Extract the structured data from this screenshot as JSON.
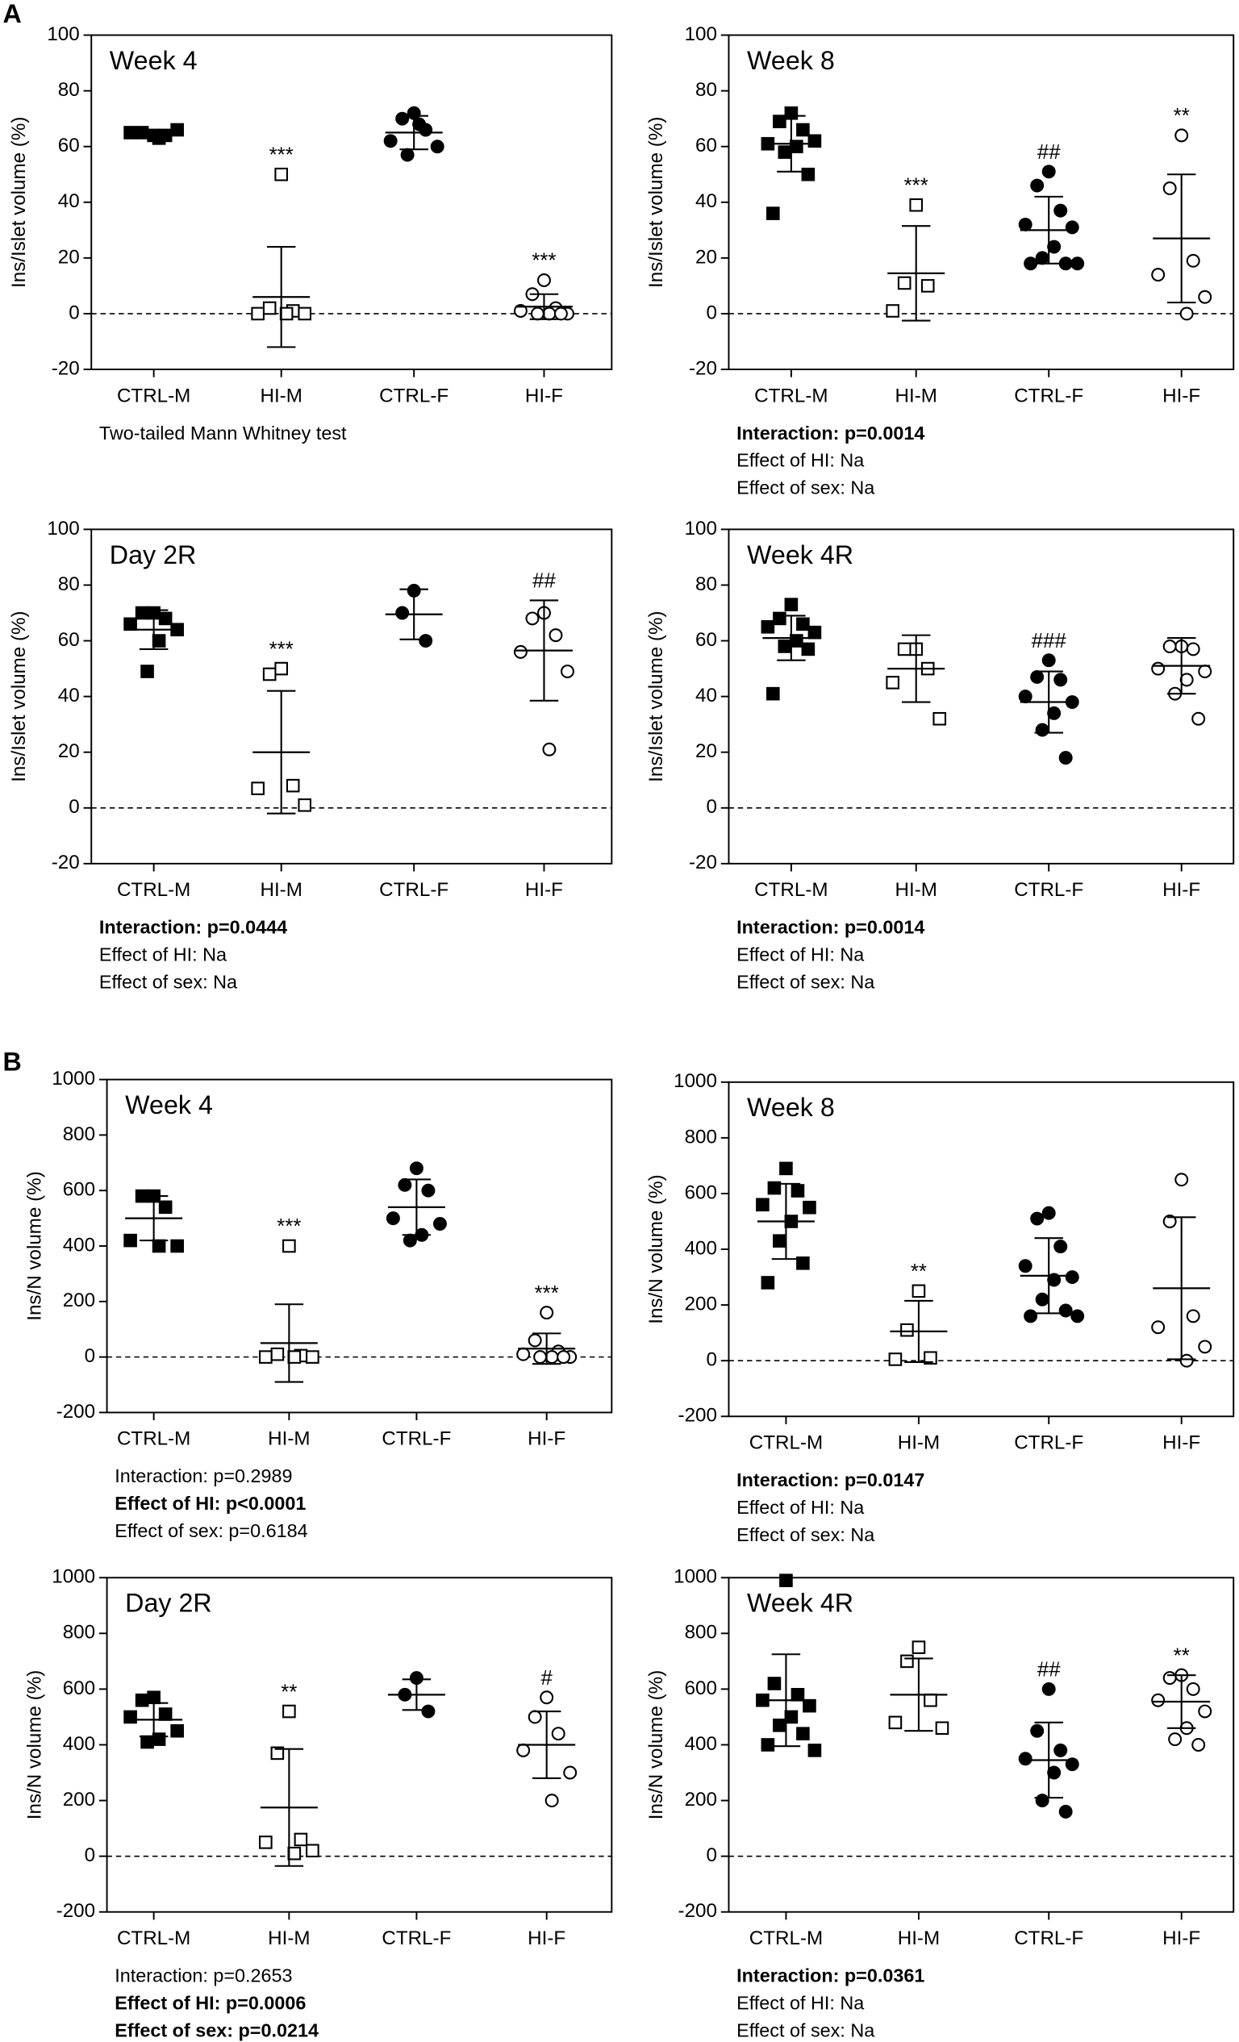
{
  "panel_labels": [
    "A",
    "B"
  ],
  "chart_data": [
    {
      "type": "dot",
      "title": "Week 4",
      "ylabel": "Ins/Islet volume (%)",
      "ylim": [
        -20,
        100
      ],
      "yticks": [
        -20,
        0,
        20,
        40,
        60,
        80,
        100
      ],
      "reference_line": 0,
      "series": [
        {
          "name": "CTRL-M",
          "marker": "square",
          "filled": true,
          "color": "#000",
          "values": [
            64,
            65,
            64,
            65,
            66,
            63
          ],
          "mean": 64.5,
          "sd": 1.2
        },
        {
          "name": "HI-M",
          "marker": "square",
          "filled": false,
          "color": "#000",
          "values": [
            50,
            2,
            1,
            0,
            0,
            0
          ],
          "mean": 6,
          "sd": 18,
          "annotation": "***"
        },
        {
          "name": "CTRL-F",
          "marker": "circle",
          "filled": true,
          "color": "#000",
          "values": [
            72,
            70,
            66,
            62,
            60,
            68,
            57
          ],
          "mean": 65,
          "sd": 6
        },
        {
          "name": "HI-F",
          "marker": "circle",
          "filled": false,
          "color": "#000",
          "values": [
            12,
            7,
            2,
            1,
            0,
            0,
            0,
            0
          ],
          "mean": 2.5,
          "sd": 4.5,
          "annotation": "***"
        }
      ],
      "notes": [
        {
          "text": "Two-tailed Mann Whitney test",
          "bold": false
        }
      ]
    },
    {
      "type": "dot",
      "title": "Week 8",
      "ylabel": "Ins/Islet volume (%)",
      "ylim": [
        -20,
        100
      ],
      "yticks": [
        -20,
        0,
        20,
        40,
        60,
        80,
        100
      ],
      "reference_line": 0,
      "series": [
        {
          "name": "CTRL-M",
          "marker": "square",
          "filled": true,
          "color": "#000",
          "values": [
            72,
            69,
            66,
            61,
            62,
            60,
            58,
            50,
            36
          ],
          "mean": 61,
          "sd": 10
        },
        {
          "name": "HI-M",
          "marker": "square",
          "filled": false,
          "color": "#000",
          "values": [
            39,
            11,
            10,
            1
          ],
          "mean": 14.5,
          "sd": 17,
          "annotation": "***"
        },
        {
          "name": "CTRL-F",
          "marker": "circle",
          "filled": true,
          "color": "#000",
          "values": [
            51,
            46,
            37,
            32,
            31,
            24,
            20,
            18,
            18,
            18
          ],
          "mean": 30,
          "sd": 12,
          "annotation": "##"
        },
        {
          "name": "HI-F",
          "marker": "circle",
          "filled": false,
          "color": "#000",
          "values": [
            64,
            45,
            19,
            14,
            6,
            0
          ],
          "mean": 27,
          "sd": 23,
          "annotation": "**"
        }
      ],
      "notes": [
        {
          "text": "Interaction: p=0.0014",
          "bold": true
        },
        {
          "text": "Effect of HI: Na",
          "bold": false
        },
        {
          "text": "Effect of sex: Na",
          "bold": false
        }
      ]
    },
    {
      "type": "dot",
      "title": "Day 2R",
      "ylabel": "Ins/Islet volume (%)",
      "ylim": [
        -20,
        100
      ],
      "yticks": [
        -20,
        0,
        20,
        40,
        60,
        80,
        100
      ],
      "reference_line": 0,
      "series": [
        {
          "name": "CTRL-M",
          "marker": "square",
          "filled": true,
          "color": "#000",
          "values": [
            70,
            70,
            68,
            66,
            64,
            60,
            49
          ],
          "mean": 64,
          "sd": 7
        },
        {
          "name": "HI-M",
          "marker": "square",
          "filled": false,
          "color": "#000",
          "values": [
            50,
            48,
            8,
            7,
            1
          ],
          "mean": 20,
          "sd": 22,
          "annotation": "***"
        },
        {
          "name": "CTRL-F",
          "marker": "circle",
          "filled": true,
          "color": "#000",
          "values": [
            78,
            70,
            60
          ],
          "mean": 69.5,
          "sd": 9
        },
        {
          "name": "HI-F",
          "marker": "circle",
          "filled": false,
          "color": "#000",
          "values": [
            70,
            68,
            62,
            56,
            49,
            21
          ],
          "mean": 56.5,
          "sd": 18,
          "annotation": "##"
        }
      ],
      "notes": [
        {
          "text": "Interaction: p=0.0444",
          "bold": true
        },
        {
          "text": "Effect of HI: Na",
          "bold": false
        },
        {
          "text": "Effect of sex: Na",
          "bold": false
        }
      ]
    },
    {
      "type": "dot",
      "title": "Week 4R",
      "ylabel": "Ins/Islet volume (%)",
      "ylim": [
        -20,
        100
      ],
      "yticks": [
        -20,
        0,
        20,
        40,
        60,
        80,
        100
      ],
      "reference_line": 0,
      "series": [
        {
          "name": "CTRL-M",
          "marker": "square",
          "filled": true,
          "color": "#000",
          "values": [
            73,
            68,
            66,
            65,
            63,
            60,
            58,
            57,
            41
          ],
          "mean": 61,
          "sd": 8
        },
        {
          "name": "HI-M",
          "marker": "square",
          "filled": false,
          "color": "#000",
          "values": [
            57,
            57,
            50,
            45,
            32
          ],
          "mean": 50,
          "sd": 12
        },
        {
          "name": "CTRL-F",
          "marker": "circle",
          "filled": true,
          "color": "#000",
          "values": [
            53,
            47,
            46,
            40,
            38,
            34,
            28,
            18
          ],
          "mean": 38,
          "sd": 11,
          "annotation": "###"
        },
        {
          "name": "HI-F",
          "marker": "circle",
          "filled": false,
          "color": "#000",
          "values": [
            58,
            58,
            57,
            50,
            49,
            46,
            41,
            32
          ],
          "mean": 51,
          "sd": 10
        }
      ],
      "notes": [
        {
          "text": "Interaction: p=0.0014",
          "bold": true
        },
        {
          "text": "Effect of HI: Na",
          "bold": false
        },
        {
          "text": "Effect of sex: Na",
          "bold": false
        }
      ]
    },
    {
      "type": "dot",
      "title": "Week 4",
      "ylabel": "Ins/N volume (%)",
      "ylim": [
        -200,
        1000
      ],
      "yticks": [
        -200,
        0,
        200,
        400,
        600,
        800,
        1000
      ],
      "reference_line": 0,
      "series": [
        {
          "name": "CTRL-M",
          "marker": "square",
          "filled": true,
          "color": "#000",
          "values": [
            580,
            580,
            540,
            420,
            400,
            400
          ],
          "mean": 500,
          "sd": 80
        },
        {
          "name": "HI-M",
          "marker": "square",
          "filled": false,
          "color": "#000",
          "values": [
            400,
            10,
            5,
            0,
            0,
            0
          ],
          "mean": 50,
          "sd": 140,
          "annotation": "***"
        },
        {
          "name": "CTRL-F",
          "marker": "circle",
          "filled": true,
          "color": "#000",
          "values": [
            680,
            620,
            600,
            500,
            480,
            440,
            420
          ],
          "mean": 540,
          "sd": 100
        },
        {
          "name": "HI-F",
          "marker": "circle",
          "filled": false,
          "color": "#000",
          "values": [
            160,
            60,
            20,
            10,
            0,
            0,
            0,
            0
          ],
          "mean": 30,
          "sd": 55,
          "annotation": "***"
        }
      ],
      "notes": [
        {
          "text": "Interaction: p=0.2989",
          "bold": false
        },
        {
          "text": "Effect of HI: p<0.0001",
          "bold": true
        },
        {
          "text": "Effect of sex: p=0.6184",
          "bold": false
        }
      ]
    },
    {
      "type": "dot",
      "title": "Week 8",
      "ylabel": "Ins/N volume (%)",
      "ylim": [
        -200,
        1000
      ],
      "yticks": [
        -200,
        0,
        200,
        400,
        600,
        800,
        1000
      ],
      "reference_line": 0,
      "series": [
        {
          "name": "CTRL-M",
          "marker": "square",
          "filled": true,
          "color": "#000",
          "values": [
            690,
            620,
            610,
            560,
            550,
            500,
            430,
            350,
            280
          ],
          "mean": 500,
          "sd": 135
        },
        {
          "name": "HI-M",
          "marker": "square",
          "filled": false,
          "color": "#000",
          "values": [
            250,
            110,
            10,
            5
          ],
          "mean": 105,
          "sd": 110,
          "annotation": "**"
        },
        {
          "name": "CTRL-F",
          "marker": "circle",
          "filled": true,
          "color": "#000",
          "values": [
            530,
            510,
            410,
            340,
            300,
            290,
            220,
            180,
            160,
            160
          ],
          "mean": 305,
          "sd": 135
        },
        {
          "name": "HI-F",
          "marker": "circle",
          "filled": false,
          "color": "#000",
          "values": [
            650,
            500,
            160,
            120,
            50,
            0
          ],
          "mean": 260,
          "sd": 255
        }
      ],
      "notes": [
        {
          "text": "Interaction: p=0.0147",
          "bold": true
        },
        {
          "text": "Effect of HI: Na",
          "bold": false
        },
        {
          "text": "Effect of sex: Na",
          "bold": false
        }
      ]
    },
    {
      "type": "dot",
      "title": "Day 2R",
      "ylabel": "Ins/N volume (%)",
      "ylim": [
        -200,
        1000
      ],
      "yticks": [
        -200,
        0,
        200,
        400,
        600,
        800,
        1000
      ],
      "reference_line": 0,
      "series": [
        {
          "name": "CTRL-M",
          "marker": "square",
          "filled": true,
          "color": "#000",
          "values": [
            570,
            560,
            510,
            500,
            450,
            420,
            410
          ],
          "mean": 490,
          "sd": 60
        },
        {
          "name": "HI-M",
          "marker": "square",
          "filled": false,
          "color": "#000",
          "values": [
            520,
            370,
            60,
            50,
            20,
            10
          ],
          "mean": 175,
          "sd": 210,
          "annotation": "**"
        },
        {
          "name": "CTRL-F",
          "marker": "circle",
          "filled": true,
          "color": "#000",
          "values": [
            640,
            580,
            520
          ],
          "mean": 580,
          "sd": 55
        },
        {
          "name": "HI-F",
          "marker": "circle",
          "filled": false,
          "color": "#000",
          "values": [
            570,
            500,
            440,
            380,
            300,
            200
          ],
          "mean": 400,
          "sd": 120,
          "annotation": "#"
        }
      ],
      "notes": [
        {
          "text": "Interaction: p=0.2653",
          "bold": false
        },
        {
          "text": "Effect of HI: p=0.0006",
          "bold": true
        },
        {
          "text": "Effect of sex: p=0.0214",
          "bold": true
        }
      ]
    },
    {
      "type": "dot",
      "title": "Week 4R",
      "ylabel": "Ins/N volume (%)",
      "ylim": [
        -200,
        1000
      ],
      "yticks": [
        -200,
        0,
        200,
        400,
        600,
        800,
        1000
      ],
      "reference_line": 0,
      "series": [
        {
          "name": "CTRL-M",
          "marker": "square",
          "filled": true,
          "color": "#000",
          "values": [
            990,
            620,
            580,
            560,
            540,
            500,
            470,
            440,
            400,
            380
          ],
          "mean": 560,
          "sd": 165
        },
        {
          "name": "HI-M",
          "marker": "square",
          "filled": false,
          "color": "#000",
          "values": [
            750,
            700,
            560,
            480,
            460
          ],
          "mean": 580,
          "sd": 130
        },
        {
          "name": "CTRL-F",
          "marker": "circle",
          "filled": true,
          "color": "#000",
          "values": [
            600,
            450,
            380,
            350,
            330,
            300,
            200,
            160
          ],
          "mean": 345,
          "sd": 135,
          "annotation": "##"
        },
        {
          "name": "HI-F",
          "marker": "circle",
          "filled": false,
          "color": "#000",
          "values": [
            650,
            640,
            600,
            560,
            520,
            460,
            420,
            400
          ],
          "mean": 555,
          "sd": 95,
          "annotation": "**"
        }
      ],
      "notes": [
        {
          "text": "Interaction: p=0.0361",
          "bold": true
        },
        {
          "text": "Effect of HI: Na",
          "bold": false
        },
        {
          "text": "Effect of sex: Na",
          "bold": false
        }
      ]
    }
  ]
}
